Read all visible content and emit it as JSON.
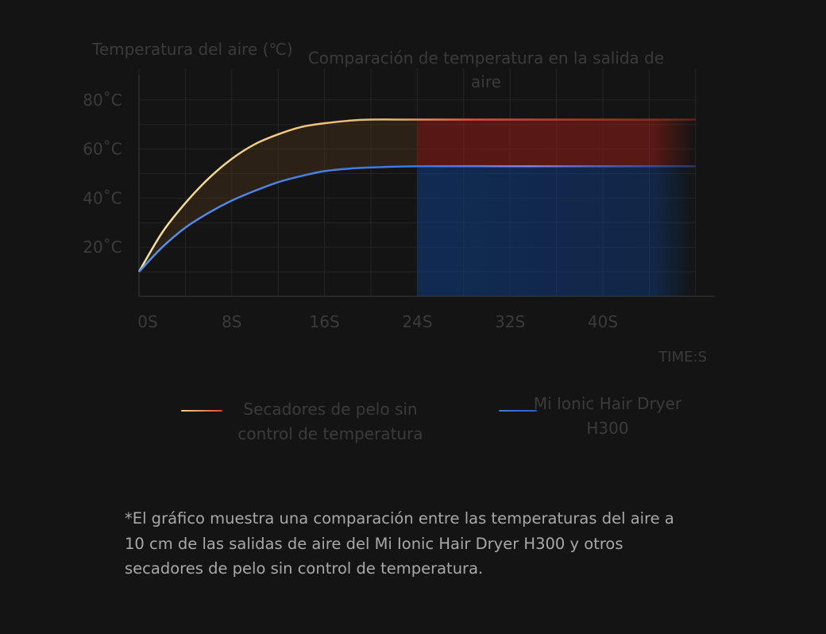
{
  "chart_data": {
    "type": "line",
    "title": "Comparación de temperatura en la salida de aire",
    "ylabel": "Temperatura del aire (℃)",
    "xlabel": "TIME:S",
    "x_ticks": [
      "0S",
      "8S",
      "16S",
      "24S",
      "32S",
      "40S"
    ],
    "y_ticks": [
      "20˚C",
      "40˚C",
      "60˚C",
      "80˚C"
    ],
    "y_tick_values": [
      20,
      40,
      60,
      80
    ],
    "xlim": [
      0,
      48
    ],
    "ylim": [
      0,
      90
    ],
    "grid": true,
    "legend_position": "bottom",
    "series": [
      {
        "name": "Secadores de pelo sin control de temperatura",
        "color": "#e84a2a",
        "x": [
          0,
          2,
          4,
          6,
          8,
          10,
          12,
          14,
          16,
          18,
          20,
          24,
          32,
          40,
          48
        ],
        "y": [
          10,
          26,
          38,
          48,
          56,
          62,
          66,
          69,
          70.5,
          71.5,
          72,
          72,
          72,
          72,
          72
        ]
      },
      {
        "name": "Mi Ionic Hair Dryer H300",
        "color": "#2f6ee0",
        "x": [
          0,
          2,
          4,
          6,
          8,
          10,
          12,
          14,
          16,
          18,
          20,
          24,
          32,
          40,
          48
        ],
        "y": [
          10,
          20,
          28,
          34,
          39,
          43,
          46.5,
          49,
          51,
          52,
          52.5,
          53,
          53,
          53,
          53
        ]
      }
    ]
  },
  "footnote": "*El gráfico muestra una comparación entre las temperaturas del aire a 10 cm de las salidas de aire del Mi Ionic Hair Dryer H300 y otros secadores de pelo sin control de temperatura."
}
